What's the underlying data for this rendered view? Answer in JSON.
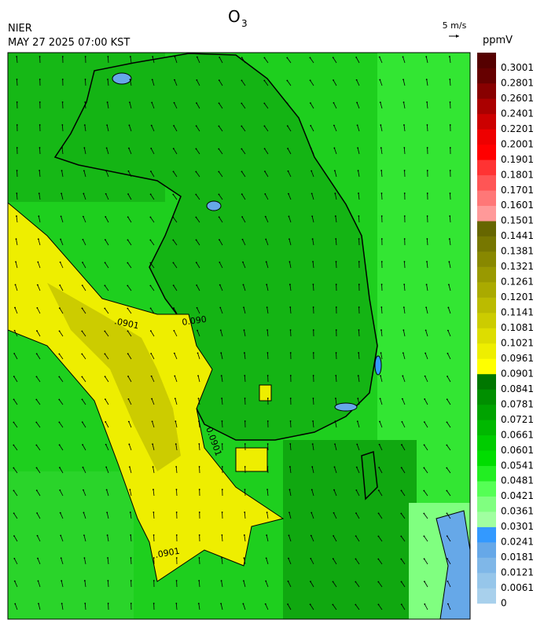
{
  "header": {
    "agency": "NIER",
    "datetime": "MAY 27 2025 07:00 KST",
    "title": "O",
    "title_sub": "3",
    "wind_ref": "5 m/s"
  },
  "colorbar": {
    "unit": "ppmV",
    "levels": [
      0,
      0.0061,
      0.0121,
      0.0181,
      0.0241,
      0.0301,
      0.0361,
      0.0421,
      0.0481,
      0.0541,
      0.0601,
      0.0661,
      0.0721,
      0.0781,
      0.0841,
      0.0901,
      0.0961,
      0.1021,
      0.1081,
      0.1141,
      0.1201,
      0.1261,
      0.1321,
      0.1381,
      0.1441,
      0.1501,
      0.1601,
      0.1701,
      0.1801,
      0.1901,
      0.2001,
      0.2201,
      0.2401,
      0.2601,
      0.2801,
      0.3001
    ],
    "colors": [
      "#a8d0ec",
      "#96c6ea",
      "#7fb7e8",
      "#66a8e8",
      "#3399ff",
      "#a0ffa0",
      "#80ff80",
      "#55ff55",
      "#22ee22",
      "#00dd00",
      "#00cc00",
      "#00b800",
      "#00a300",
      "#008f00",
      "#007700",
      "#ffff00",
      "#eeee00",
      "#dddd00",
      "#cccc00",
      "#bbbb00",
      "#aaaa00",
      "#999900",
      "#888800",
      "#777700",
      "#666600",
      "#ff9999",
      "#ff7777",
      "#ff5555",
      "#ff3333",
      "#ff0000",
      "#ee0000",
      "#cc0000",
      "#aa0000",
      "#880000",
      "#660000",
      "#550000"
    ]
  },
  "contour_labels": [
    ".0901",
    "0.090",
    "0.0901",
    ".0901"
  ]
}
